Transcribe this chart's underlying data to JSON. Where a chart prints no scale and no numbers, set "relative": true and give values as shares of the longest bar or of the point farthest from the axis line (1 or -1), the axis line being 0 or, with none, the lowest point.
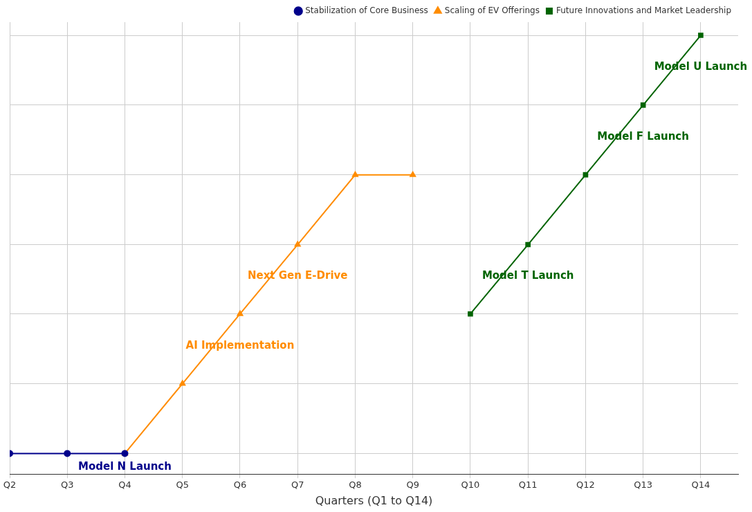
{
  "chart_data": {
    "type": "line",
    "xlabel": "Quarters (Q1 to Q14)",
    "relative": true,
    "grid": true,
    "legend": "top right",
    "categories": [
      "Q2",
      "Q3",
      "Q4",
      "Q5",
      "Q6",
      "Q7",
      "Q8",
      "Q9",
      "Q10",
      "Q11",
      "Q12",
      "Q13",
      "Q14"
    ],
    "series": [
      {
        "name": "Stabilization of Core Business",
        "color": "#00008b",
        "marker": "circle",
        "values": [
          0.047,
          0.047,
          0.047,
          null,
          null,
          null,
          null,
          null,
          null,
          null,
          null,
          null,
          null
        ]
      },
      {
        "name": "Scaling of EV Offerings",
        "color": "#ff8c00",
        "marker": "triangle",
        "values": [
          null,
          null,
          0.047,
          0.206,
          0.365,
          0.523,
          0.682,
          0.682,
          null,
          null,
          null,
          null,
          null
        ]
      },
      {
        "name": "Future Innovations and Market Leadership",
        "color": "#006400",
        "marker": "square",
        "values": [
          null,
          null,
          null,
          null,
          null,
          null,
          null,
          null,
          0.365,
          0.523,
          0.682,
          0.841,
          1
        ]
      }
    ],
    "annotations": [
      {
        "text": "Model N Launch",
        "x": "Q4",
        "y": 0.047
      },
      {
        "text": "AI Implementation",
        "x": "Q6",
        "y": 0.365
      },
      {
        "text": "Next Gen E-Drive",
        "x": "Q7",
        "y": 0.523
      },
      {
        "text": "Model T Launch",
        "x": "Q11",
        "y": 0.523
      },
      {
        "text": "Model F Launch",
        "x": "Q13",
        "y": 0.841
      },
      {
        "text": "Model U Launch",
        "x": "Q14",
        "y": 1
      }
    ]
  }
}
